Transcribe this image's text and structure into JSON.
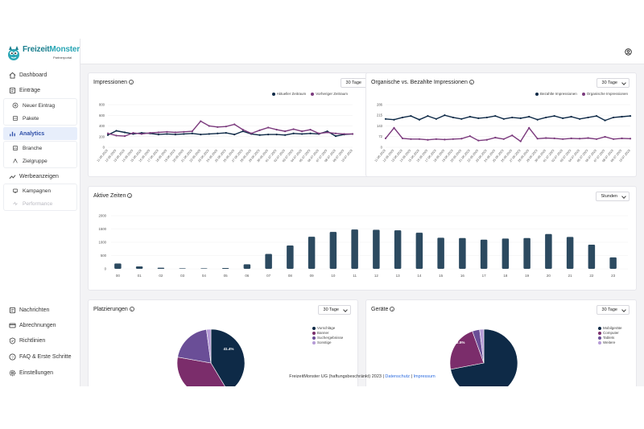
{
  "brand": {
    "name_a": "Freizeit",
    "name_b": "Monster",
    "sub": "Partnerportal"
  },
  "colors": {
    "navy": "#0e2a47",
    "purple": "#7b3a7d",
    "bar": "#2c4a60",
    "active": "#2d4ea8"
  },
  "sidebar": {
    "items": [
      {
        "label": "Dashboard",
        "icon": "home-icon"
      },
      {
        "label": "Einträge",
        "icon": "entries-icon"
      },
      {
        "label": "Neuer Eintrag",
        "icon": "plus-circle-icon"
      },
      {
        "label": "Pakete",
        "icon": "package-icon"
      },
      {
        "label": "Analytics",
        "icon": "chart-icon"
      },
      {
        "label": "Branche",
        "icon": "branch-icon"
      },
      {
        "label": "Zielgruppe",
        "icon": "target-icon"
      },
      {
        "label": "Werbeanzeigen",
        "icon": "trend-icon"
      },
      {
        "label": "Kampagnen",
        "icon": "campaign-icon"
      },
      {
        "label": "Performance",
        "icon": "performance-icon"
      },
      {
        "label": "Nachrichten",
        "icon": "message-icon"
      },
      {
        "label": "Abrechnungen",
        "icon": "card-icon"
      },
      {
        "label": "Richtlinien",
        "icon": "shield-icon"
      },
      {
        "label": "FAQ & Erste Schritte",
        "icon": "help-icon"
      },
      {
        "label": "Einstellungen",
        "icon": "gear-icon"
      }
    ]
  },
  "cards": {
    "impressions": {
      "title": "Impressionen",
      "range": "30 Tage"
    },
    "organic": {
      "title": "Organische vs. Bezahlte Impressionen",
      "range": "30 Tage"
    },
    "active": {
      "title": "Aktive Zeiten",
      "range": "Stunden"
    },
    "placements": {
      "title": "Platzierungen",
      "range": "30 Tage"
    },
    "devices": {
      "title": "Geräte",
      "range": "30 Tage"
    }
  },
  "footer": {
    "text": "FreizeitMonster UG (haftungsbeschränkt) 2023 |",
    "link1": "Datenschutz",
    "sep": "|",
    "link2": "Impressum"
  },
  "chart_data": [
    {
      "type": "line",
      "title": "Impressionen",
      "x": [
        "11.06.2023",
        "12.06.2023",
        "13.06.2023",
        "14.06.2023",
        "15.06.2023",
        "16.06.2023",
        "17.06.2023",
        "18.06.2023",
        "19.06.2023",
        "20.06.2023",
        "21.06.2023",
        "22.06.2023",
        "23.06.2023",
        "24.06.2023",
        "25.06.2023",
        "26.06.2023",
        "27.06.2023",
        "28.06.2023",
        "29.06.2023",
        "30.06.2023",
        "01.07.2023",
        "02.07.2023",
        "03.07.2023",
        "04.07.2023",
        "05.07.2023",
        "06.07.2023",
        "07.07.2023",
        "08.07.2023",
        "09.07.2023",
        "10.07.2023"
      ],
      "yticks": [
        0,
        200,
        400,
        600,
        800
      ],
      "ylim": [
        0,
        800
      ],
      "series": [
        {
          "name": "Aktueller Zeitraum",
          "color": "#0e2a47",
          "values": [
            230,
            310,
            280,
            250,
            270,
            260,
            240,
            250,
            240,
            250,
            260,
            240,
            250,
            260,
            270,
            240,
            300,
            250,
            230,
            240,
            240,
            230,
            260,
            250,
            260,
            250,
            300,
            210,
            240,
            250
          ]
        },
        {
          "name": "Vorheriger Zeitraum",
          "color": "#7b3a7d",
          "values": [
            260,
            220,
            210,
            270,
            250,
            270,
            280,
            290,
            280,
            290,
            300,
            490,
            400,
            380,
            390,
            430,
            330,
            260,
            320,
            370,
            330,
            300,
            340,
            300,
            330,
            260,
            280,
            260,
            250,
            250
          ]
        }
      ],
      "legend": "top-right"
    },
    {
      "type": "line",
      "title": "Organische vs. Bezahlte Impressionen",
      "x": [
        "11.06.2023",
        "12.06.2023",
        "13.06.2023",
        "14.06.2023",
        "15.06.2023",
        "16.06.2023",
        "17.06.2023",
        "18.06.2023",
        "19.06.2023",
        "20.06.2023",
        "21.06.2023",
        "22.06.2023",
        "23.06.2023",
        "24.06.2023",
        "25.06.2023",
        "26.06.2023",
        "27.06.2023",
        "28.06.2023",
        "29.06.2023",
        "30.06.2023",
        "01.07.2023",
        "02.07.2023",
        "03.07.2023",
        "04.07.2023",
        "05.07.2023",
        "06.07.2023",
        "07.07.2023",
        "08.07.2023",
        "09.07.2023",
        "10.07.2023"
      ],
      "yticks": [
        0,
        72,
        143,
        215,
        286
      ],
      "ylim": [
        0,
        286
      ],
      "series": [
        {
          "name": "Bezahlte Impressionen",
          "color": "#0e2a47",
          "values": [
            190,
            185,
            200,
            210,
            185,
            210,
            190,
            215,
            200,
            190,
            205,
            195,
            200,
            210,
            190,
            200,
            195,
            205,
            185,
            200,
            210,
            195,
            205,
            190,
            200,
            210,
            180,
            200,
            205,
            210
          ]
        },
        {
          "name": "Organische Impressionen",
          "color": "#7b3a7d",
          "values": [
            60,
            130,
            60,
            55,
            55,
            50,
            55,
            52,
            55,
            58,
            75,
            45,
            50,
            65,
            55,
            80,
            40,
            130,
            58,
            62,
            60,
            55,
            60,
            58,
            62,
            55,
            70,
            55,
            60,
            58
          ]
        }
      ],
      "legend": "top-right"
    },
    {
      "type": "bar",
      "title": "Aktive Zeiten",
      "categories": [
        "00",
        "01",
        "02",
        "03",
        "04",
        "05",
        "06",
        "07",
        "08",
        "09",
        "10",
        "11",
        "12",
        "13",
        "14",
        "15",
        "16",
        "17",
        "18",
        "19",
        "20",
        "21",
        "22",
        "23"
      ],
      "yticks": [
        0,
        500,
        1000,
        1500,
        2000
      ],
      "ylim": [
        0,
        2000
      ],
      "values": [
        200,
        90,
        40,
        20,
        20,
        30,
        170,
        560,
        880,
        1210,
        1390,
        1480,
        1470,
        1450,
        1360,
        1170,
        1160,
        1100,
        1140,
        1160,
        1310,
        1200,
        910,
        430
      ],
      "color": "#2c4a60"
    },
    {
      "type": "pie",
      "title": "Platzierungen",
      "labels": [
        "Vorschläge",
        "Banner",
        "Suchergebnisse",
        "Sonstige"
      ],
      "values": [
        41.4,
        36.4,
        20.1,
        2.1
      ],
      "colors": [
        "#0e2a47",
        "#7b2d6b",
        "#6a4e97",
        "#b59ad6"
      ],
      "shown_labels": [
        "41.4%",
        "20.1%"
      ],
      "legend": "right"
    },
    {
      "type": "pie",
      "title": "Geräte",
      "labels": [
        "Mobilgeräte",
        "Computer",
        "Tablets",
        "Weitere"
      ],
      "values": [
        72.0,
        22.5,
        3.5,
        2.0
      ],
      "colors": [
        "#0e2a47",
        "#7b2d6b",
        "#6a4e97",
        "#b59ad6"
      ],
      "shown_labels": [
        "22.5%"
      ],
      "legend": "right"
    }
  ]
}
